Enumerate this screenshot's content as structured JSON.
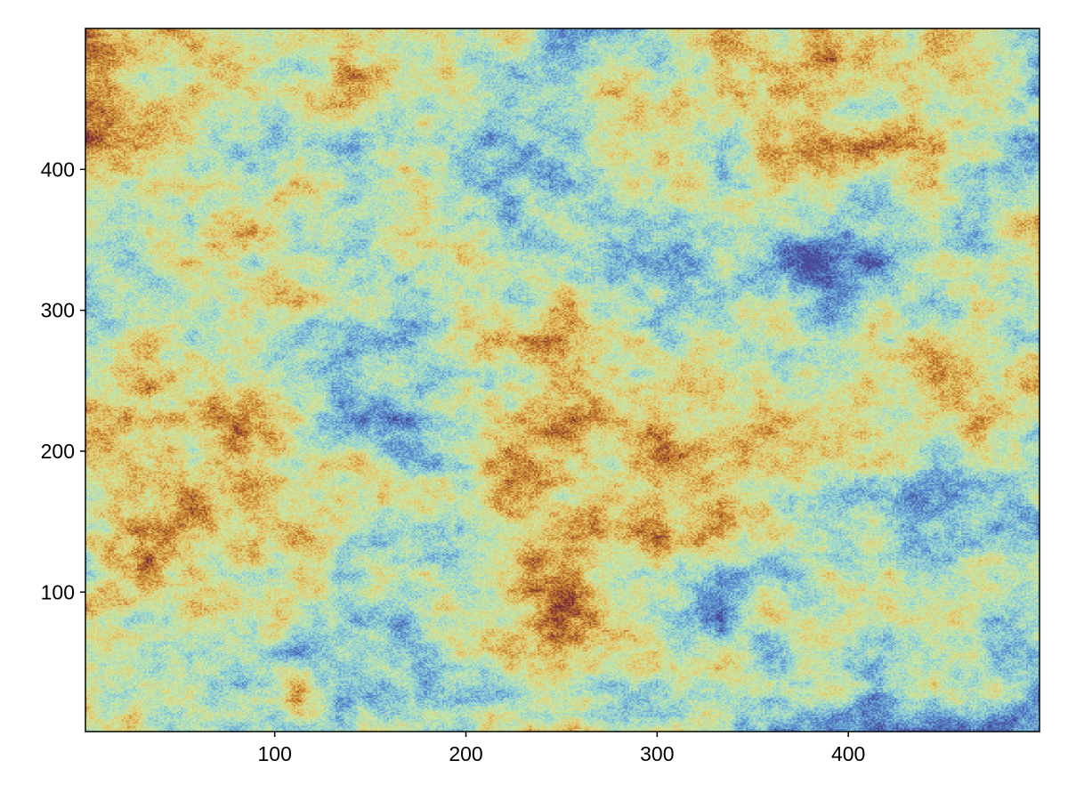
{
  "chart_data": {
    "type": "heatmap",
    "title": "",
    "xlabel": "",
    "ylabel": "",
    "xlim": [
      1,
      500
    ],
    "ylim": [
      1,
      500
    ],
    "grid_size": [
      500,
      500
    ],
    "x_ticks": [
      100,
      200,
      300,
      400
    ],
    "x_tick_labels": [
      "100",
      "200",
      "300",
      "400"
    ],
    "y_ticks": [
      100,
      200,
      300,
      400
    ],
    "y_tick_labels": [
      "100",
      "200",
      "300",
      "400"
    ],
    "grid": false,
    "legend": "none",
    "colormap": {
      "name": "seaborn-icefire-like (multi-hue)",
      "stops": [
        "#4a4a9a",
        "#5a8fcf",
        "#8fd0d8",
        "#c9e6a4",
        "#e6c66a",
        "#c27a2a",
        "#7a2f3a"
      ]
    },
    "field_description": "Dense noisy scalar field with blocky patches, values in [0,1]"
  }
}
